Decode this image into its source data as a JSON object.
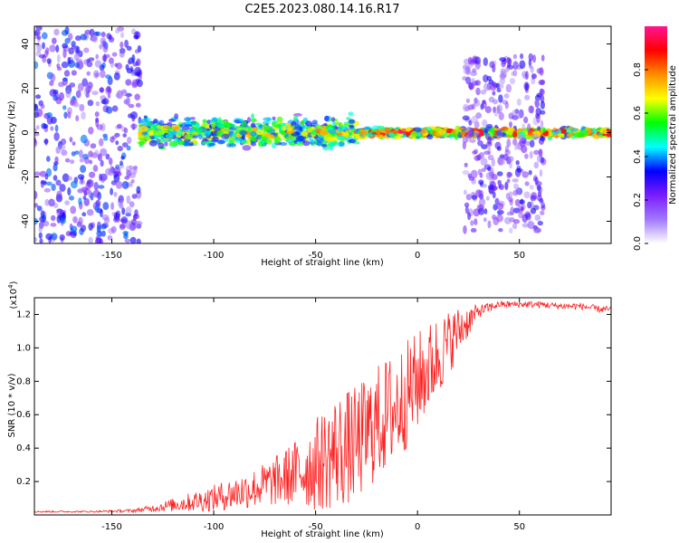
{
  "figure_title": "C2E5.2023.080.14.16.R17",
  "chart_data": [
    {
      "type": "heatmap",
      "title": "C2E5.2023.080.14.16.R17",
      "xlabel": "Height of straight line (km)",
      "ylabel": "Frequency (Hz)",
      "xlim": [
        -188,
        95
      ],
      "ylim": [
        -50,
        48
      ],
      "xticks": [
        -150,
        -100,
        -50,
        0,
        50
      ],
      "yticks": [
        -40,
        -20,
        0,
        20,
        40
      ],
      "colorbar": {
        "label": "Normalized spectral amplitude",
        "range": [
          0.0,
          1.0
        ],
        "ticks": [
          "0.0",
          "0.2",
          "0.4",
          "0.6",
          "0.8"
        ],
        "colors": [
          "#ffffff",
          "#a078ff",
          "#7a1cff",
          "#0000ff",
          "#00ffff",
          "#00ff00",
          "#ffff00",
          "#ff8c00",
          "#ff0000",
          "#ff1493"
        ]
      },
      "regions": [
        {
          "x": [
            -188,
            -136
          ],
          "f": [
            -50,
            48
          ],
          "amplitude": 0.3,
          "description": "broadband scatter"
        },
        {
          "x": [
            -136,
            -30
          ],
          "f": [
            -10,
            10
          ],
          "amplitude": 0.55,
          "description": "main band"
        },
        {
          "x": [
            -30,
            95
          ],
          "f": [
            -3,
            3
          ],
          "amplitude": 0.7,
          "description": "narrow carrier line"
        },
        {
          "x": [
            23,
            62
          ],
          "f": [
            -45,
            35
          ],
          "amplitude": 0.25,
          "description": "scatter"
        }
      ]
    },
    {
      "type": "line",
      "xlabel": "Height of straight line (km)",
      "ylabel": "SNR (10 * v/v)",
      "yscale_label": "(x10",
      "yscale_exp": "4",
      "xlim": [
        -188,
        95
      ],
      "ylim": [
        0,
        1.3
      ],
      "xticks": [
        -150,
        -100,
        -50,
        0,
        50
      ],
      "yticks": [
        "0.2",
        "0.4",
        "0.6",
        "0.8",
        "1.0",
        "1.2"
      ],
      "color": "#ff2020",
      "series": [
        {
          "x": [
            -188,
            -160,
            -140,
            -130,
            -120,
            -110,
            -100,
            -90,
            -80,
            -70,
            -60,
            -50,
            -40,
            -30,
            -20,
            -10,
            0,
            10,
            20,
            30,
            40,
            50,
            60,
            70,
            80,
            90,
            95
          ],
          "mean": [
            0.02,
            0.02,
            0.025,
            0.04,
            0.06,
            0.08,
            0.1,
            0.13,
            0.16,
            0.2,
            0.25,
            0.3,
            0.38,
            0.42,
            0.55,
            0.65,
            0.8,
            0.95,
            1.1,
            1.22,
            1.26,
            1.26,
            1.26,
            1.25,
            1.25,
            1.23,
            1.23
          ],
          "spread": [
            0.005,
            0.005,
            0.01,
            0.02,
            0.04,
            0.06,
            0.08,
            0.1,
            0.12,
            0.15,
            0.2,
            0.28,
            0.35,
            0.35,
            0.35,
            0.35,
            0.3,
            0.25,
            0.15,
            0.04,
            0.02,
            0.02,
            0.02,
            0.02,
            0.02,
            0.02,
            0.02
          ]
        }
      ]
    }
  ]
}
